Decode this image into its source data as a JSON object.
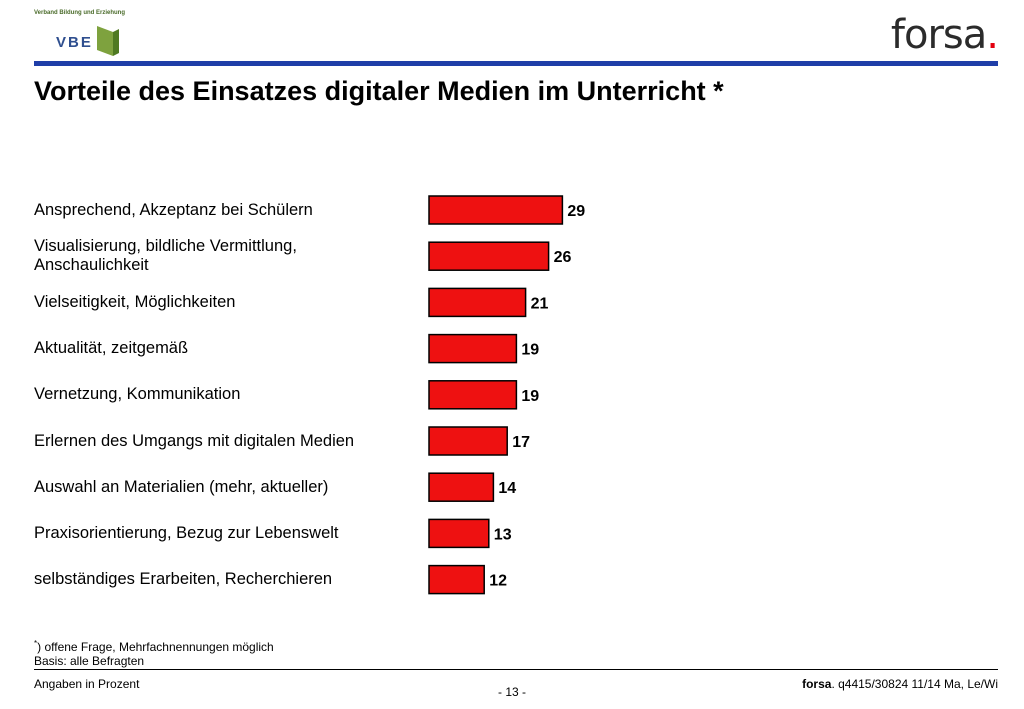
{
  "logos": {
    "vbe_top": "Verband Bildung und Erziehung",
    "vbe_letters": "VBE",
    "forsa_word": "forsa",
    "forsa_dot": "."
  },
  "title": "Vorteile des Einsatzes digitaler Medien im Unterricht *",
  "colors": {
    "bar": "#ee1111",
    "header_rule": "#1f3ea8",
    "forsa_dot": "#e3000f"
  },
  "chart_data": {
    "type": "bar",
    "orientation": "horizontal",
    "categories": [
      "Ansprechend, Akzeptanz bei Schülern",
      "Visualisierung, bildliche Vermittlung, Anschaulichkeit",
      "Vielseitigkeit, Möglichkeiten",
      "Aktualität, zeitgemäß",
      "Vernetzung, Kommunikation",
      "Erlernen des Umgangs mit digitalen Medien",
      "Auswahl an Materialien (mehr, aktueller)",
      "Praxisorientierung, Bezug zur Lebenswelt",
      "selbständiges Erarbeiten, Recherchieren"
    ],
    "values": [
      29,
      26,
      21,
      19,
      19,
      17,
      14,
      13,
      12
    ],
    "value_labels": [
      "29",
      "26",
      "21",
      "19",
      "19",
      "17",
      "14",
      "13",
      "12"
    ],
    "grid": false,
    "legend": "none"
  },
  "footnote": {
    "marker": "*",
    "line1": ") offene Frage, Mehrfachnennungen möglich",
    "line2": "Basis: alle Befragten"
  },
  "footer": {
    "left": "Angaben in Prozent",
    "center": "- 13 -",
    "right_brand": "forsa",
    "right_text": ". q4415/30824 11/14 Ma, Le/Wi"
  }
}
